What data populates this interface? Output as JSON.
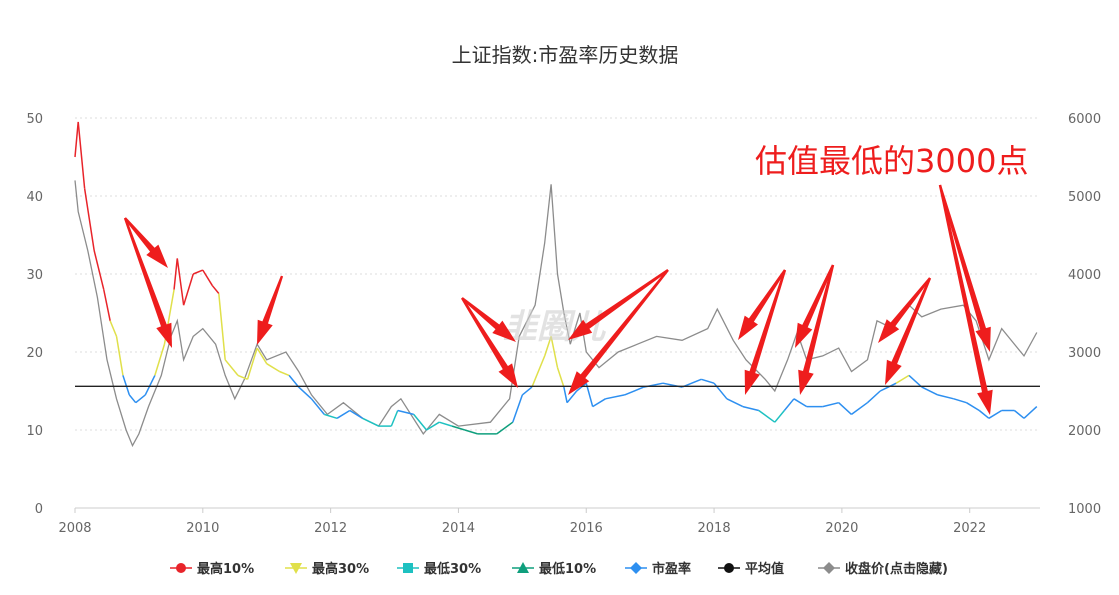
{
  "chart_data": {
    "type": "line",
    "title": "上证指数:市盈率历史数据",
    "x_ticks": [
      "2008",
      "2010",
      "2012",
      "2014",
      "2016",
      "2018",
      "2020",
      "2022"
    ],
    "xlim": [
      2008.0,
      2023.1
    ],
    "y_left": {
      "ticks": [
        "0",
        "10",
        "20",
        "30",
        "40",
        "50"
      ],
      "ylim": [
        0,
        50
      ]
    },
    "y_right": {
      "ticks": [
        "1000",
        "2000",
        "3000",
        "4000",
        "5000",
        "6000"
      ],
      "ylim": [
        1000,
        6000
      ]
    },
    "average_pe": 15.6,
    "annotation": "估值最低的3000点",
    "legend": [
      {
        "name": "最高10%",
        "color": "#e8242a",
        "marker": "circle"
      },
      {
        "name": "最高30%",
        "color": "#e0e04a",
        "marker": "triangle-down"
      },
      {
        "name": "最低30%",
        "color": "#1ec1c1",
        "marker": "square"
      },
      {
        "name": "最低10%",
        "color": "#0f9f7d",
        "marker": "triangle-up"
      },
      {
        "name": "市盈率",
        "color": "#2d8ff0",
        "marker": "diamond"
      },
      {
        "name": "平均值",
        "color": "#111111",
        "marker": "circle"
      },
      {
        "name": "收盘价(点击隐藏)",
        "color": "#8c8c8c",
        "marker": "diamond"
      }
    ],
    "pe_series": [
      [
        2008.0,
        45.0
      ],
      [
        2008.05,
        49.5
      ],
      [
        2008.15,
        41.0
      ],
      [
        2008.3,
        33.0
      ],
      [
        2008.45,
        28.0
      ],
      [
        2008.55,
        24.0
      ],
      [
        2008.65,
        22.0
      ],
      [
        2008.75,
        17.0
      ],
      [
        2008.85,
        14.5
      ],
      [
        2008.95,
        13.5
      ],
      [
        2009.1,
        14.5
      ],
      [
        2009.25,
        17.0
      ],
      [
        2009.4,
        21.0
      ],
      [
        2009.55,
        28.0
      ],
      [
        2009.6,
        32.0
      ],
      [
        2009.7,
        26.0
      ],
      [
        2009.85,
        30.0
      ],
      [
        2010.0,
        30.5
      ],
      [
        2010.15,
        28.5
      ],
      [
        2010.25,
        27.5
      ],
      [
        2010.35,
        19.0
      ],
      [
        2010.55,
        17.0
      ],
      [
        2010.7,
        16.5
      ],
      [
        2010.85,
        20.5
      ],
      [
        2011.0,
        18.5
      ],
      [
        2011.2,
        17.5
      ],
      [
        2011.35,
        17.0
      ],
      [
        2011.5,
        15.5
      ],
      [
        2011.7,
        14.0
      ],
      [
        2011.9,
        12.0
      ],
      [
        2012.1,
        11.5
      ],
      [
        2012.3,
        12.5
      ],
      [
        2012.5,
        11.5
      ],
      [
        2012.75,
        10.5
      ],
      [
        2012.95,
        10.5
      ],
      [
        2013.05,
        12.5
      ],
      [
        2013.3,
        12.0
      ],
      [
        2013.5,
        10.0
      ],
      [
        2013.7,
        11.0
      ],
      [
        2013.9,
        10.5
      ],
      [
        2014.1,
        10.0
      ],
      [
        2014.3,
        9.5
      ],
      [
        2014.6,
        9.5
      ],
      [
        2014.85,
        11.0
      ],
      [
        2015.0,
        14.5
      ],
      [
        2015.15,
        15.5
      ],
      [
        2015.35,
        19.5
      ],
      [
        2015.45,
        22.0
      ],
      [
        2015.55,
        18.0
      ],
      [
        2015.65,
        15.5
      ],
      [
        2015.7,
        13.5
      ],
      [
        2015.85,
        15.0
      ],
      [
        2016.0,
        16.0
      ],
      [
        2016.1,
        13.0
      ],
      [
        2016.3,
        14.0
      ],
      [
        2016.6,
        14.5
      ],
      [
        2016.9,
        15.5
      ],
      [
        2017.2,
        16.0
      ],
      [
        2017.5,
        15.5
      ],
      [
        2017.8,
        16.5
      ],
      [
        2018.0,
        16.0
      ],
      [
        2018.2,
        14.0
      ],
      [
        2018.45,
        13.0
      ],
      [
        2018.7,
        12.5
      ],
      [
        2018.95,
        11.0
      ],
      [
        2019.1,
        12.5
      ],
      [
        2019.25,
        14.0
      ],
      [
        2019.45,
        13.0
      ],
      [
        2019.7,
        13.0
      ],
      [
        2019.95,
        13.5
      ],
      [
        2020.15,
        12.0
      ],
      [
        2020.4,
        13.5
      ],
      [
        2020.6,
        15.0
      ],
      [
        2020.85,
        16.0
      ],
      [
        2021.05,
        17.0
      ],
      [
        2021.25,
        15.5
      ],
      [
        2021.5,
        14.5
      ],
      [
        2021.75,
        14.0
      ],
      [
        2021.95,
        13.5
      ],
      [
        2022.15,
        12.5
      ],
      [
        2022.3,
        11.5
      ],
      [
        2022.5,
        12.5
      ],
      [
        2022.7,
        12.5
      ],
      [
        2022.85,
        11.5
      ],
      [
        2023.05,
        13.0
      ]
    ],
    "close_series": [
      [
        2008.0,
        5200
      ],
      [
        2008.05,
        4800
      ],
      [
        2008.2,
        4300
      ],
      [
        2008.35,
        3700
      ],
      [
        2008.5,
        2900
      ],
      [
        2008.65,
        2400
      ],
      [
        2008.8,
        2000
      ],
      [
        2008.9,
        1800
      ],
      [
        2009.0,
        1950
      ],
      [
        2009.15,
        2300
      ],
      [
        2009.35,
        2700
      ],
      [
        2009.5,
        3200
      ],
      [
        2009.6,
        3400
      ],
      [
        2009.7,
        2900
      ],
      [
        2009.85,
        3200
      ],
      [
        2010.0,
        3300
      ],
      [
        2010.2,
        3100
      ],
      [
        2010.35,
        2700
      ],
      [
        2010.5,
        2400
      ],
      [
        2010.65,
        2650
      ],
      [
        2010.85,
        3100
      ],
      [
        2011.0,
        2900
      ],
      [
        2011.3,
        3000
      ],
      [
        2011.5,
        2750
      ],
      [
        2011.7,
        2450
      ],
      [
        2011.95,
        2200
      ],
      [
        2012.2,
        2350
      ],
      [
        2012.5,
        2150
      ],
      [
        2012.75,
        2050
      ],
      [
        2012.95,
        2300
      ],
      [
        2013.1,
        2400
      ],
      [
        2013.45,
        1950
      ],
      [
        2013.7,
        2200
      ],
      [
        2014.0,
        2050
      ],
      [
        2014.5,
        2100
      ],
      [
        2014.8,
        2400
      ],
      [
        2014.95,
        3200
      ],
      [
        2015.2,
        3600
      ],
      [
        2015.35,
        4400
      ],
      [
        2015.45,
        5150
      ],
      [
        2015.55,
        4000
      ],
      [
        2015.65,
        3500
      ],
      [
        2015.75,
        3100
      ],
      [
        2015.9,
        3500
      ],
      [
        2016.0,
        3000
      ],
      [
        2016.2,
        2800
      ],
      [
        2016.5,
        3000
      ],
      [
        2016.8,
        3100
      ],
      [
        2017.1,
        3200
      ],
      [
        2017.5,
        3150
      ],
      [
        2017.9,
        3300
      ],
      [
        2018.05,
        3550
      ],
      [
        2018.3,
        3150
      ],
      [
        2018.5,
        2900
      ],
      [
        2018.8,
        2650
      ],
      [
        2018.95,
        2500
      ],
      [
        2019.15,
        2900
      ],
      [
        2019.3,
        3250
      ],
      [
        2019.45,
        2900
      ],
      [
        2019.7,
        2950
      ],
      [
        2019.95,
        3050
      ],
      [
        2020.15,
        2750
      ],
      [
        2020.4,
        2900
      ],
      [
        2020.55,
        3400
      ],
      [
        2020.8,
        3300
      ],
      [
        2021.05,
        3600
      ],
      [
        2021.25,
        3450
      ],
      [
        2021.55,
        3550
      ],
      [
        2021.9,
        3600
      ],
      [
        2022.1,
        3400
      ],
      [
        2022.3,
        2900
      ],
      [
        2022.5,
        3300
      ],
      [
        2022.75,
        3050
      ],
      [
        2022.85,
        2950
      ],
      [
        2023.05,
        3250
      ]
    ]
  }
}
